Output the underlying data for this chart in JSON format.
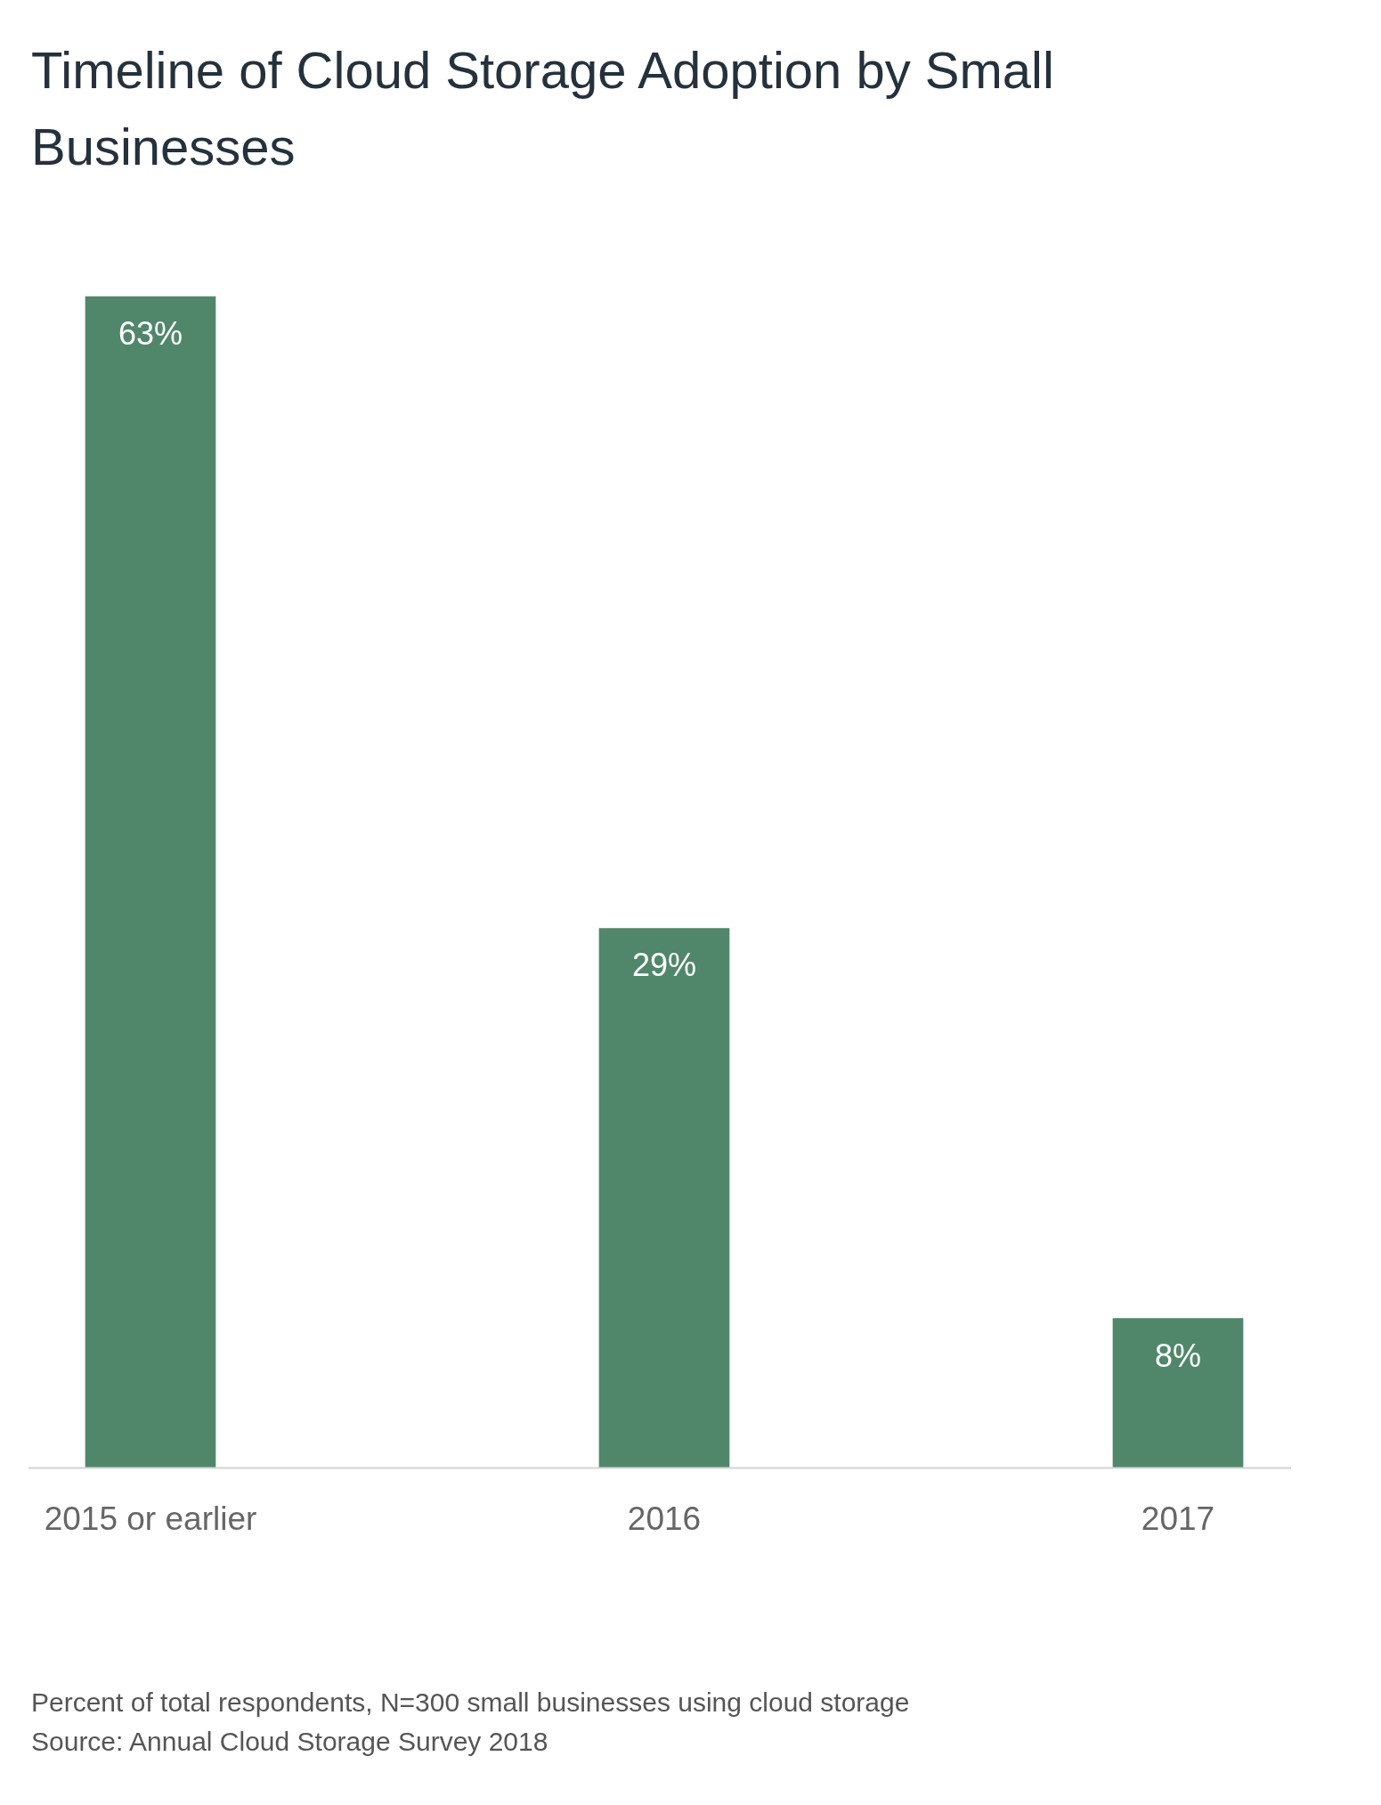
{
  "chart_data": {
    "type": "bar",
    "title": "Timeline of Cloud Storage Adoption by Small Businesses",
    "categories": [
      "2015 or earlier",
      "2016",
      "2017"
    ],
    "values": [
      63,
      29,
      8
    ],
    "value_labels": [
      "63%",
      "29%",
      "8%"
    ],
    "color": "#50876a",
    "relative": false,
    "annotations": [
      "Percent of total respondents, N=300 small businesses using cloud storage",
      "Source: Annual Cloud Storage Survey 2018"
    ]
  }
}
